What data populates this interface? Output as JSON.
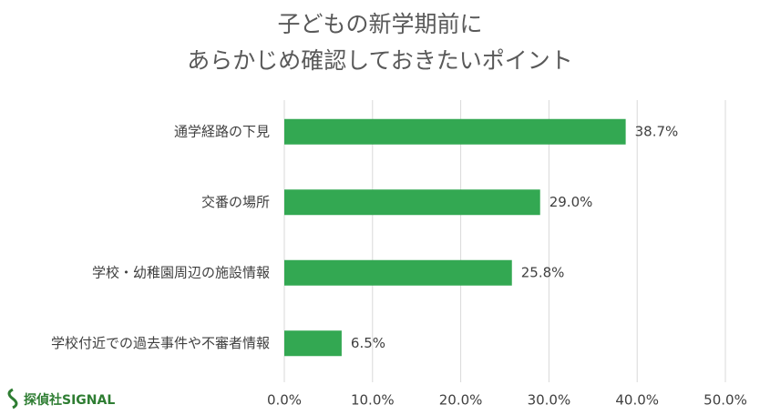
{
  "chart_data": {
    "type": "barh",
    "title": [
      "子どもの新学期前に",
      "あらかじめ確認しておきたいポイント"
    ],
    "categories": [
      "通学経路の下見",
      "交番の場所",
      "学校・幼稚園周辺の施設情報",
      "学校付近での過去事件や不審者情報"
    ],
    "values": [
      38.7,
      29.0,
      25.8,
      6.5
    ],
    "value_labels": [
      "38.7%",
      "29.0%",
      "25.8%",
      "6.5%"
    ],
    "color": "#33a852",
    "xlim": [
      0,
      50
    ],
    "xticks": [
      {
        "value": 0,
        "label": "0.0%"
      },
      {
        "value": 10,
        "label": "10.0%"
      },
      {
        "value": 20,
        "label": "20.0%"
      },
      {
        "value": 30,
        "label": "30.0%"
      },
      {
        "value": 40,
        "label": "40.0%"
      },
      {
        "value": 50,
        "label": "50.0%"
      }
    ],
    "grid": true,
    "logo": "探偵社SIGNAL"
  }
}
